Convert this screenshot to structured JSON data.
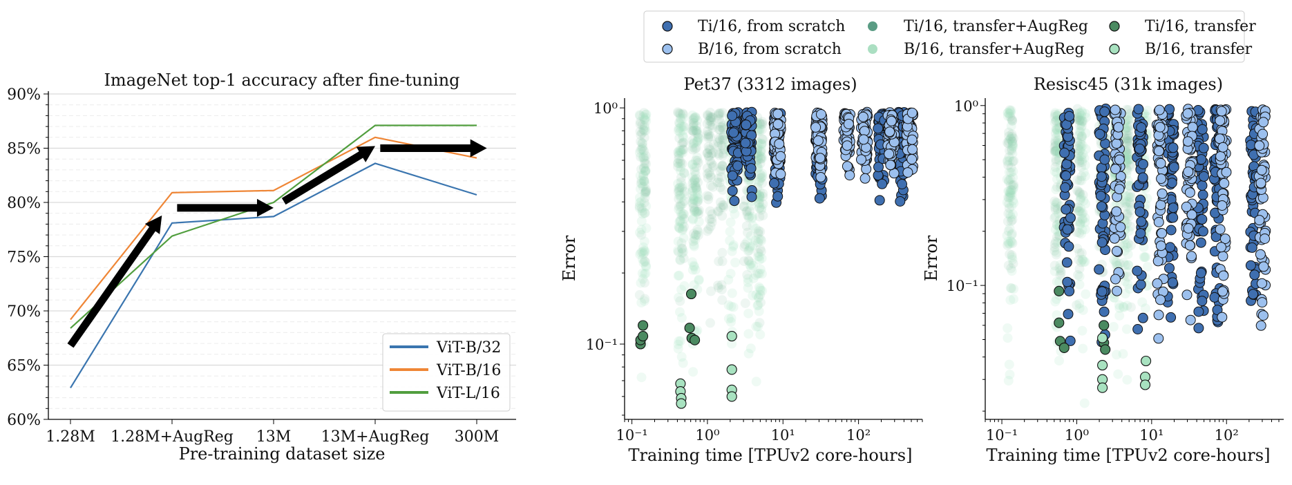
{
  "chart_data": [
    {
      "type": "line",
      "title": "ImageNet top-1 accuracy after fine-tuning",
      "xlabel": "Pre-training dataset size",
      "ylabel": "",
      "categories": [
        "1.28M",
        "1.28M+AugReg",
        "13M",
        "13M+AugReg",
        "300M"
      ],
      "ylim": [
        60,
        90
      ],
      "yticks": [
        60,
        65,
        70,
        75,
        80,
        85,
        90
      ],
      "ytick_labels": [
        "60%",
        "65%",
        "70%",
        "75%",
        "80%",
        "85%",
        "90%"
      ],
      "grid": true,
      "legend_position": "bottom-right",
      "series": [
        {
          "name": "ViT-B/32",
          "color": "#3a75af",
          "values": [
            62.9,
            78.1,
            78.7,
            83.6,
            80.7
          ]
        },
        {
          "name": "ViT-B/16",
          "color": "#ef8636",
          "values": [
            69.2,
            80.9,
            81.1,
            86.0,
            84.1
          ]
        },
        {
          "name": "ViT-L/16",
          "color": "#519e3e",
          "values": [
            68.4,
            76.9,
            80.0,
            87.1,
            87.1
          ]
        }
      ],
      "arrows": [
        {
          "from": [
            0.0,
            66.8
          ],
          "to": [
            0.9,
            78.8
          ]
        },
        {
          "from": [
            1.05,
            79.5
          ],
          "to": [
            2.0,
            79.5
          ]
        },
        {
          "from": [
            2.1,
            80.1
          ],
          "to": [
            3.0,
            85.2
          ]
        },
        {
          "from": [
            3.05,
            85.0
          ],
          "to": [
            4.1,
            85.0
          ]
        }
      ]
    },
    {
      "type": "scatter",
      "title": "Pet37 (3312 images)",
      "xlabel": "Training time [TPUv2 core-hours]",
      "ylabel": "Error",
      "xscale": "log",
      "yscale": "log",
      "xlim": [
        0.08,
        700
      ],
      "ylim": [
        0.048,
        1.1
      ],
      "xticks": [
        0.1,
        1,
        10,
        100
      ],
      "xtick_labels": [
        "10⁻¹",
        "10⁰",
        "10¹",
        "10²"
      ],
      "yticks": [
        0.1,
        1
      ],
      "ytick_labels": [
        "10⁻¹",
        "10⁰"
      ],
      "groups": [
        {
          "series": "Ti/16, transfer+AugReg",
          "x": [
            0.14,
            0.45,
            0.7,
            1.1,
            1.5,
            3.3,
            4.9
          ],
          "ymin": 0.12,
          "ymax": 0.96
        },
        {
          "series": "B/16, transfer+AugReg",
          "x": [
            0.14,
            0.45,
            0.7,
            2.1,
            3.7,
            4.8
          ],
          "ymin": 0.056,
          "ymax": 0.96
        },
        {
          "series": "Ti/16, from scratch",
          "x": [
            2.3,
            3.5,
            8.4,
            30,
            200,
            370
          ],
          "ymin": 0.37,
          "ymax": 0.96
        },
        {
          "series": "B/16, from scratch",
          "x": [
            8.5,
            30,
            70,
            120,
            270,
            480
          ],
          "ymin": 0.5,
          "ymax": 0.96
        }
      ],
      "points": [
        {
          "series": "Ti/16, transfer",
          "x": 0.13,
          "y": 0.1
        },
        {
          "series": "Ti/16, transfer",
          "x": 0.13,
          "y": 0.104
        },
        {
          "series": "Ti/16, transfer",
          "x": 0.14,
          "y": 0.108
        },
        {
          "series": "Ti/16, transfer",
          "x": 0.14,
          "y": 0.12
        },
        {
          "series": "Ti/16, transfer",
          "x": 0.58,
          "y": 0.117
        },
        {
          "series": "Ti/16, transfer",
          "x": 0.62,
          "y": 0.106
        },
        {
          "series": "Ti/16, transfer",
          "x": 0.68,
          "y": 0.104
        },
        {
          "series": "Ti/16, transfer",
          "x": 0.61,
          "y": 0.163
        },
        {
          "series": "B/16, transfer",
          "x": 0.44,
          "y": 0.068
        },
        {
          "series": "B/16, transfer",
          "x": 0.44,
          "y": 0.063
        },
        {
          "series": "B/16, transfer",
          "x": 0.45,
          "y": 0.059
        },
        {
          "series": "B/16, transfer",
          "x": 0.45,
          "y": 0.056
        },
        {
          "series": "B/16, transfer",
          "x": 2.1,
          "y": 0.108
        },
        {
          "series": "B/16, transfer",
          "x": 2.1,
          "y": 0.078
        },
        {
          "series": "B/16, transfer",
          "x": 2.1,
          "y": 0.064
        },
        {
          "series": "B/16, transfer",
          "x": 2.1,
          "y": 0.06
        }
      ]
    },
    {
      "type": "scatter",
      "title": "Resisc45 (31k images)",
      "xlabel": "Training time [TPUv2 core-hours]",
      "ylabel": "Error",
      "xscale": "log",
      "yscale": "log",
      "xlim": [
        0.06,
        580
      ],
      "ylim": [
        0.018,
        1.1
      ],
      "xticks": [
        0.1,
        1,
        10,
        100
      ],
      "xtick_labels": [
        "10⁻¹",
        "10⁰",
        "10¹",
        "10²"
      ],
      "yticks": [
        0.1,
        1
      ],
      "ytick_labels": [
        "10⁻¹",
        "10⁰"
      ],
      "groups": [
        {
          "series": "Ti/16, transfer+AugReg",
          "x": [
            0.13,
            0.56,
            1.1,
            2.2,
            3.5,
            4.8
          ],
          "ymin": 0.06,
          "ymax": 0.96
        },
        {
          "series": "B/16, transfer+AugReg",
          "x": [
            0.13,
            0.56,
            1.2,
            3.4,
            4.6,
            8
          ],
          "ymin": 0.02,
          "ymax": 0.96
        },
        {
          "series": "Ti/16, from scratch",
          "x": [
            0.75,
            2.2,
            7,
            18,
            45,
            75,
            230
          ],
          "ymin": 0.045,
          "ymax": 0.96
        },
        {
          "series": "B/16, from scratch",
          "x": [
            3.5,
            13,
            32,
            90,
            300
          ],
          "ymin": 0.045,
          "ymax": 0.96
        }
      ],
      "points": [
        {
          "series": "Ti/16, transfer",
          "x": 0.58,
          "y": 0.093
        },
        {
          "series": "Ti/16, transfer",
          "x": 0.58,
          "y": 0.062
        },
        {
          "series": "Ti/16, transfer",
          "x": 0.6,
          "y": 0.049
        },
        {
          "series": "Ti/16, transfer",
          "x": 0.68,
          "y": 0.045
        },
        {
          "series": "Ti/16, transfer",
          "x": 2.3,
          "y": 0.06
        },
        {
          "series": "Ti/16, transfer",
          "x": 2.3,
          "y": 0.048
        },
        {
          "series": "Ti/16, transfer",
          "x": 2.4,
          "y": 0.044
        },
        {
          "series": "B/16, transfer",
          "x": 2.2,
          "y": 0.051
        },
        {
          "series": "B/16, transfer",
          "x": 2.2,
          "y": 0.036
        },
        {
          "series": "B/16, transfer",
          "x": 2.2,
          "y": 0.03
        },
        {
          "series": "B/16, transfer",
          "x": 2.2,
          "y": 0.027
        },
        {
          "series": "B/16, transfer",
          "x": 8.4,
          "y": 0.038
        },
        {
          "series": "B/16, transfer",
          "x": 8.2,
          "y": 0.031
        },
        {
          "series": "B/16, transfer",
          "x": 8.2,
          "y": 0.028
        }
      ]
    }
  ],
  "scatter_legend": {
    "position": "upper-center",
    "items": [
      {
        "label": "Ti/16, from scratch",
        "color": "#3f6fb0",
        "edge": "#111111",
        "alpha": 1
      },
      {
        "label": "B/16, from scratch",
        "color": "#9cc0ee",
        "edge": "#111111",
        "alpha": 1
      },
      {
        "label": "Ti/16, transfer+AugReg",
        "color": "#5a9c84",
        "edge": "none",
        "alpha": 1
      },
      {
        "label": "B/16, transfer+AugReg",
        "color": "#abdfc2",
        "edge": "none",
        "alpha": 1
      },
      {
        "label": "Ti/16, transfer",
        "color": "#4b8a61",
        "edge": "#111111",
        "alpha": 1
      },
      {
        "label": "B/16, transfer",
        "color": "#a8e2c0",
        "edge": "#111111",
        "alpha": 1
      }
    ]
  },
  "series_style": {
    "Ti/16, from scratch": {
      "color": "#3f6fb0",
      "edge": "#111111",
      "alpha": 1
    },
    "B/16, from scratch": {
      "color": "#9cc0ee",
      "edge": "#111111",
      "alpha": 1
    },
    "Ti/16, transfer+AugReg": {
      "color": "#7fb69a",
      "edge": "none",
      "alpha": 0.13
    },
    "B/16, transfer+AugReg": {
      "color": "#9fe0be",
      "edge": "none",
      "alpha": 0.17
    },
    "Ti/16, transfer": {
      "color": "#4b8a61",
      "edge": "#111111",
      "alpha": 1
    },
    "B/16, transfer": {
      "color": "#a8e2c0",
      "edge": "#111111",
      "alpha": 1
    }
  }
}
